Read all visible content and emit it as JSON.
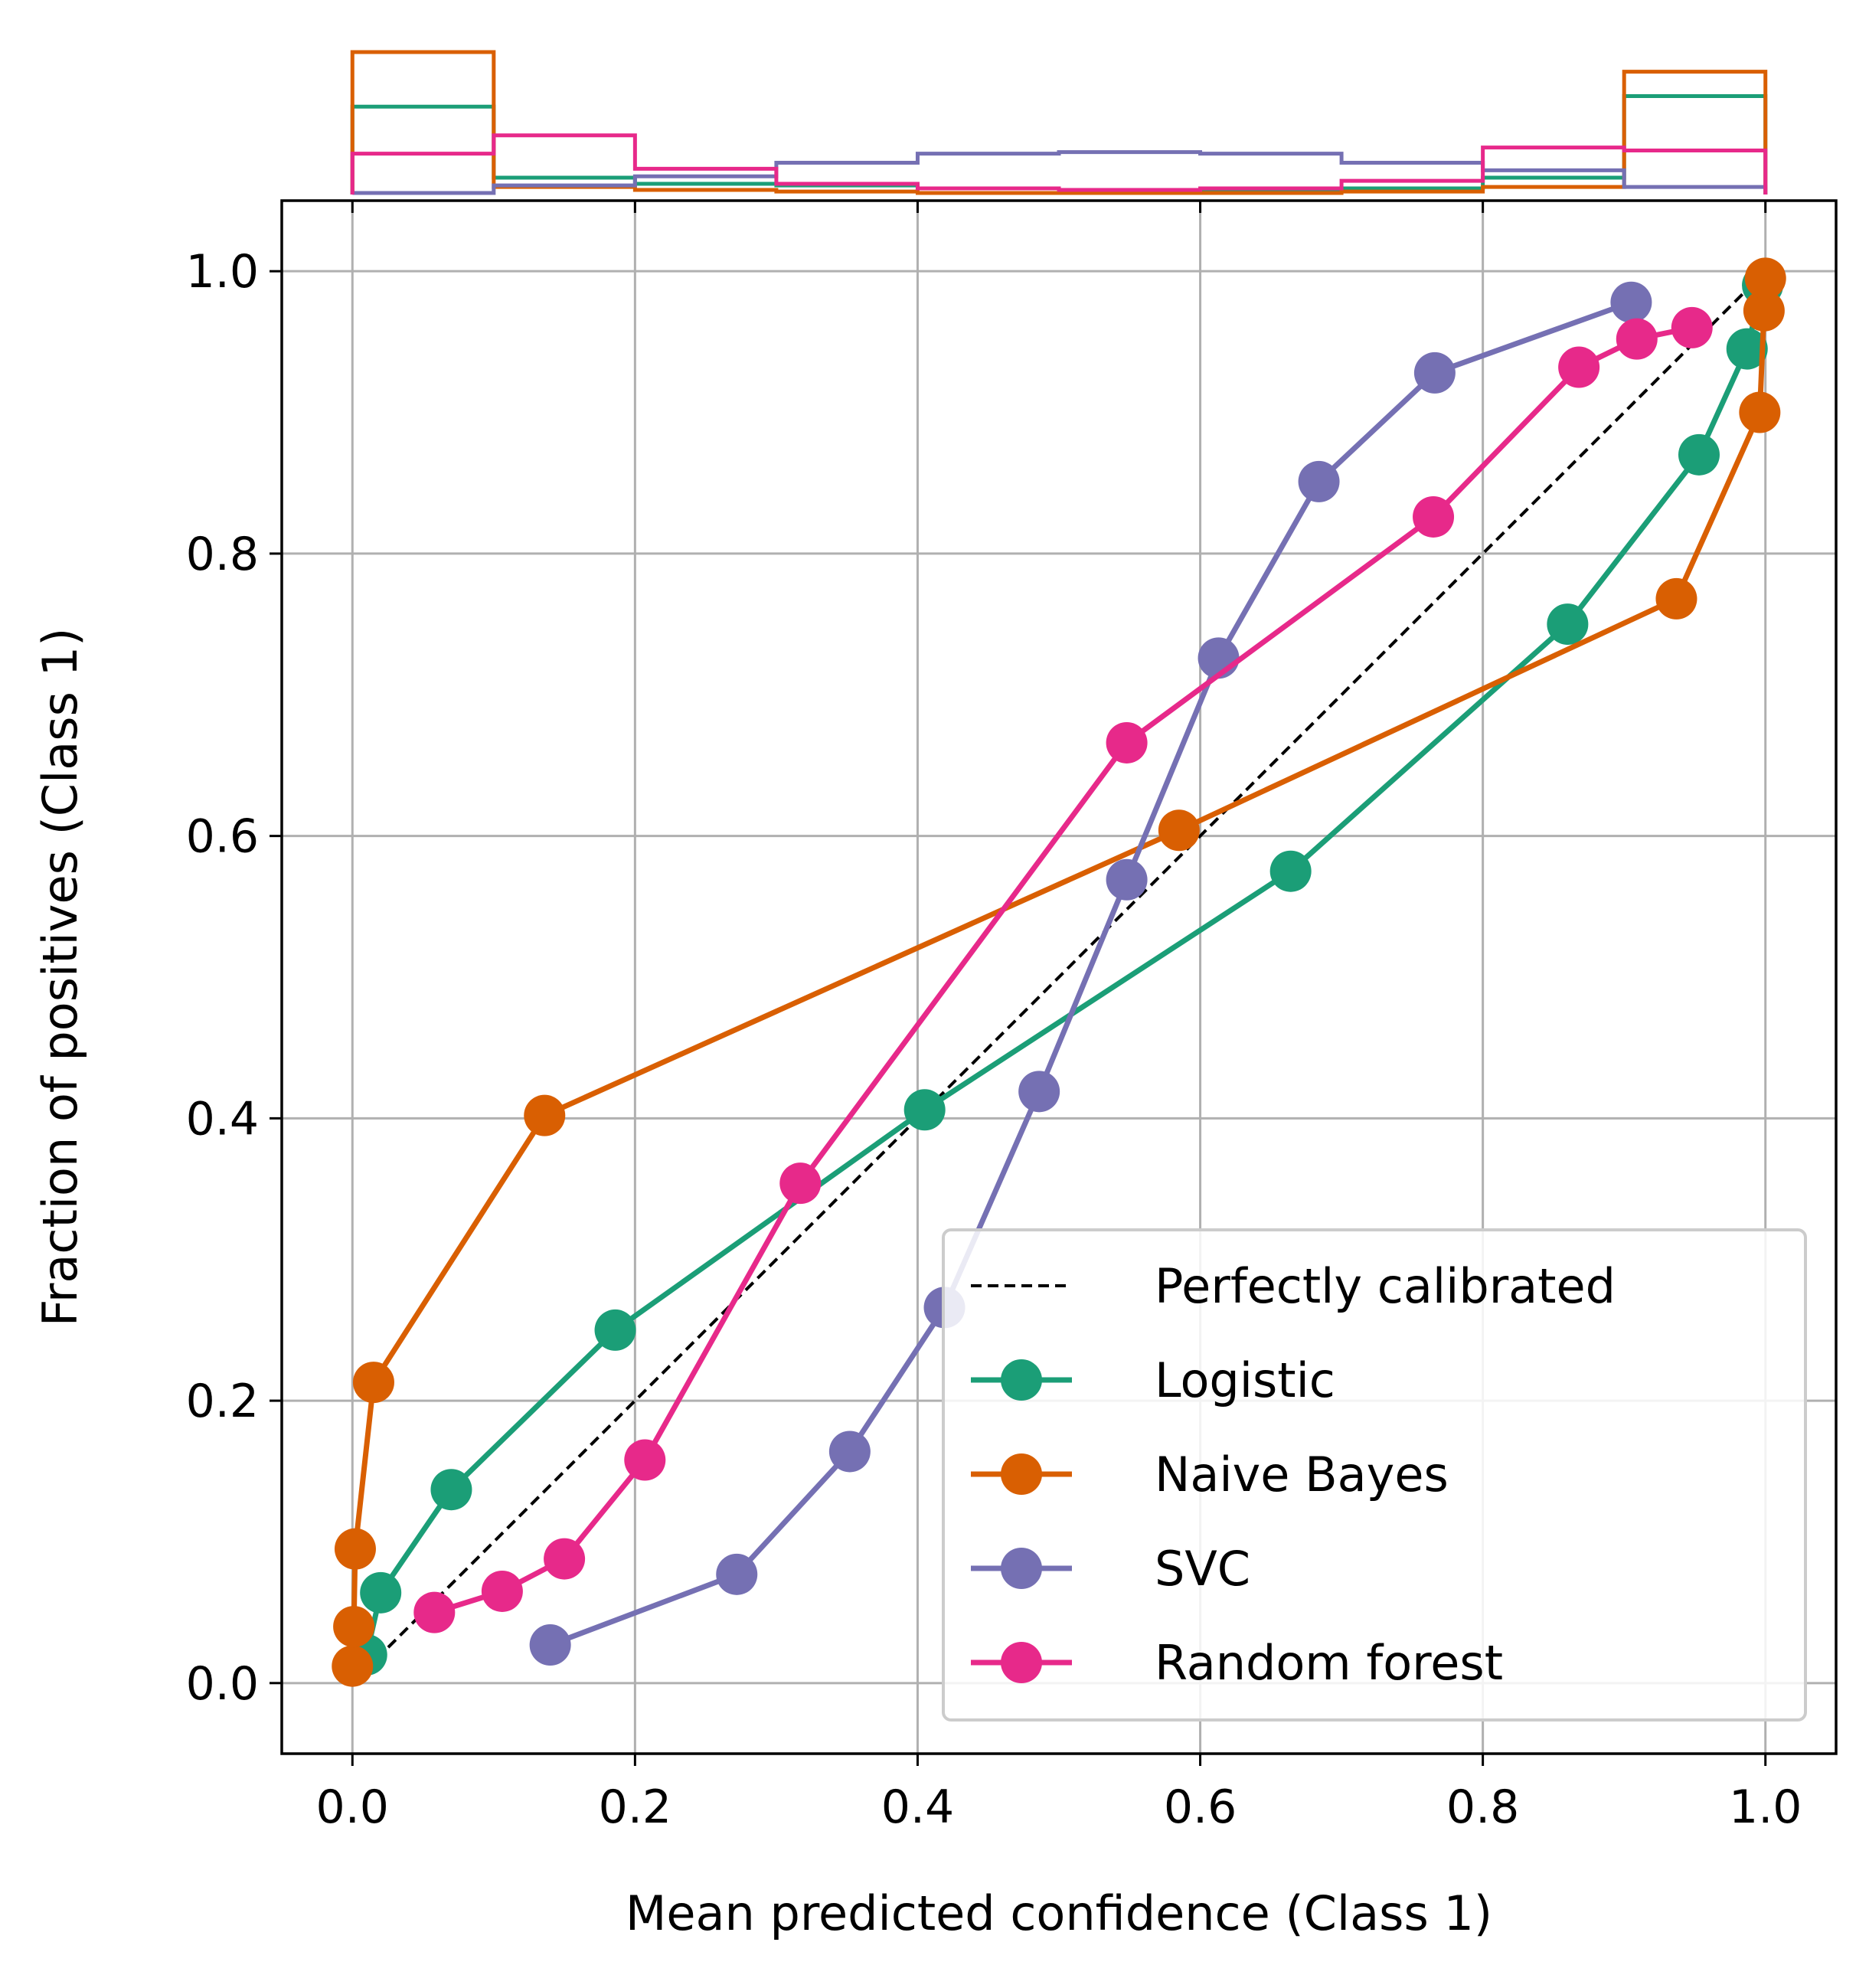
{
  "chart_data": {
    "type": "line",
    "title": "",
    "xlabel": "Mean predicted confidence (Class 1)",
    "ylabel": "Fraction of positives (Class 1)",
    "xlim": [
      -0.05,
      1.05
    ],
    "ylim": [
      -0.05,
      1.05
    ],
    "xticks": [
      "0.0",
      "0.2",
      "0.4",
      "0.6",
      "0.8",
      "1.0"
    ],
    "yticks": [
      "0.0",
      "0.2",
      "0.4",
      "0.6",
      "0.8",
      "1.0"
    ],
    "grid": true,
    "legend_position": "lower-right",
    "reference_line": {
      "name": "Perfectly calibrated",
      "style": "dashed",
      "color": "#000000",
      "x": [
        0,
        1
      ],
      "y": [
        0,
        1
      ]
    },
    "series": [
      {
        "name": "Logistic",
        "color": "#1b9e77",
        "x": [
          0.01,
          0.02,
          0.07,
          0.186,
          0.405,
          0.664,
          0.86,
          0.953,
          0.987,
          0.998
        ],
        "y": [
          0.02,
          0.064,
          0.137,
          0.25,
          0.406,
          0.575,
          0.75,
          0.87,
          0.945,
          0.99
        ]
      },
      {
        "name": "Naive Bayes",
        "color": "#d95f02",
        "x": [
          0.0,
          0.001,
          0.002,
          0.015,
          0.136,
          0.585,
          0.937,
          0.996,
          0.999,
          1.0
        ],
        "y": [
          0.012,
          0.04,
          0.095,
          0.213,
          0.402,
          0.604,
          0.768,
          0.9,
          0.972,
          0.995
        ]
      },
      {
        "name": "SVC",
        "color": "#7570b3",
        "x": [
          0.14,
          0.272,
          0.352,
          0.419,
          0.486,
          0.548,
          0.613,
          0.684,
          0.766,
          0.905
        ],
        "y": [
          0.027,
          0.077,
          0.164,
          0.266,
          0.419,
          0.569,
          0.726,
          0.851,
          0.928,
          0.978
        ]
      },
      {
        "name": "Random forest",
        "color": "#e7298a",
        "x": [
          0.058,
          0.106,
          0.15,
          0.207,
          0.317,
          0.548,
          0.765,
          0.868,
          0.909,
          0.948
        ],
        "y": [
          0.05,
          0.065,
          0.088,
          0.158,
          0.354,
          0.666,
          0.826,
          0.932,
          0.952,
          0.96
        ]
      }
    ],
    "histogram": {
      "bin_edges": [
        0.0,
        0.1,
        0.2,
        0.3,
        0.4,
        0.5,
        0.6,
        0.7,
        0.8,
        0.9,
        1.0
      ],
      "series": [
        {
          "name": "Logistic",
          "color": "#1b9e77",
          "heights": [
            0.617,
            0.118,
            0.075,
            0.064,
            0.043,
            0.032,
            0.032,
            0.043,
            0.118,
            0.691
          ]
        },
        {
          "name": "Naive Bayes",
          "color": "#d95f02",
          "heights": [
            1.0,
            0.053,
            0.032,
            0.021,
            0.011,
            0.011,
            0.011,
            0.021,
            0.053,
            0.862
          ]
        },
        {
          "name": "SVC",
          "color": "#7570b3",
          "heights": [
            0.011,
            0.064,
            0.128,
            0.223,
            0.287,
            0.298,
            0.287,
            0.223,
            0.17,
            0.053
          ]
        },
        {
          "name": "Random forest",
          "color": "#e7298a",
          "heights": [
            0.287,
            0.415,
            0.181,
            0.075,
            0.043,
            0.032,
            0.043,
            0.096,
            0.33,
            0.309
          ]
        }
      ]
    }
  }
}
